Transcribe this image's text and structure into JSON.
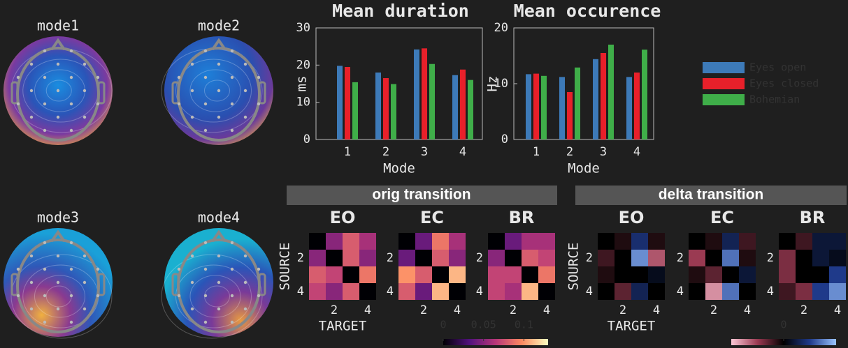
{
  "topomaps": [
    {
      "title": "mode1"
    },
    {
      "title": "mode2"
    },
    {
      "title": "mode3"
    },
    {
      "title": "mode4"
    }
  ],
  "chart_data": [
    {
      "type": "bar",
      "title": "Mean duration",
      "ylabel": "ms",
      "xlabel": "Mode",
      "categories": [
        "1",
        "2",
        "3",
        "4"
      ],
      "ylim": [
        0,
        30
      ],
      "yticks": [
        0,
        10,
        20,
        30
      ],
      "series": [
        {
          "name": "Eyes open",
          "color": "#3d7ab8",
          "values": [
            19.8,
            18,
            24.2,
            17.3
          ]
        },
        {
          "name": "Eyes closed",
          "color": "#e8202a",
          "values": [
            19.5,
            16.5,
            24.5,
            18.8
          ]
        },
        {
          "name": "Bohemian",
          "color": "#3fae49",
          "values": [
            15.4,
            14.9,
            20.3,
            16
          ]
        }
      ]
    },
    {
      "type": "bar",
      "title": "Mean occurence",
      "ylabel": "Hz",
      "xlabel": "Mode",
      "categories": [
        "1",
        "2",
        "3",
        "4"
      ],
      "ylim": [
        0,
        20
      ],
      "yticks": [
        0,
        10,
        20
      ],
      "series": [
        {
          "color": "#3d7ab8",
          "values": [
            11.7,
            11.2,
            14.4,
            11.2
          ]
        },
        {
          "color": "#e8202a",
          "values": [
            11.8,
            8.5,
            15.5,
            12
          ]
        },
        {
          "color": "#3fae49",
          "values": [
            11.4,
            12.9,
            17,
            16.1
          ]
        }
      ]
    },
    {
      "type": "heatmap",
      "title": "orig transition",
      "ylabel": "SOURCE",
      "xlabel": "TARGET",
      "xticks": [
        2,
        4
      ],
      "yticks": [
        2,
        4
      ],
      "clim": [
        0,
        0.13
      ],
      "cticks": [
        0,
        0.05,
        0.1
      ],
      "colormap": "magma",
      "panels": [
        {
          "title": "EO",
          "values": [
            [
              0,
              0.05,
              0.08,
              0.06
            ],
            [
              0.05,
              0,
              0.08,
              0.05
            ],
            [
              0.08,
              0.07,
              0,
              0.09
            ],
            [
              0.07,
              0.05,
              0.08,
              0
            ]
          ]
        },
        {
          "title": "EC",
          "values": [
            [
              0,
              0.04,
              0.09,
              0.06
            ],
            [
              0.04,
              0,
              0.08,
              0.05
            ],
            [
              0.1,
              0.08,
              0,
              0.11
            ],
            [
              0.08,
              0.04,
              0.11,
              0
            ]
          ]
        },
        {
          "title": "BR",
          "values": [
            [
              0,
              0.04,
              0.06,
              0.06
            ],
            [
              0.05,
              0,
              0.08,
              0.07
            ],
            [
              0.07,
              0.07,
              0,
              0.09
            ],
            [
              0.07,
              0.06,
              0.11,
              0
            ]
          ]
        }
      ]
    },
    {
      "type": "heatmap",
      "title": "delta transition",
      "ylabel": "SOURCE",
      "xlabel": "TARGET",
      "xticks": [
        2,
        4
      ],
      "yticks": [
        2,
        4
      ],
      "clim": [
        -0.05,
        0.05
      ],
      "cticks": [
        0
      ],
      "colormap": "pink-blue",
      "panels": [
        {
          "title": "EO",
          "values": [
            [
              0,
              -0.005,
              0.02,
              -0.005
            ],
            [
              -0.01,
              0,
              0.04,
              -0.03
            ],
            [
              -0.005,
              0,
              0,
              0.005
            ],
            [
              0,
              -0.015,
              0.015,
              0
            ]
          ]
        },
        {
          "title": "EC",
          "values": [
            [
              0,
              -0.005,
              0.015,
              -0.01
            ],
            [
              -0.025,
              0,
              0.035,
              -0.005
            ],
            [
              -0.005,
              -0.015,
              0,
              0.01
            ],
            [
              0,
              -0.04,
              0.035,
              0
            ]
          ]
        },
        {
          "title": "BR",
          "values": [
            [
              0,
              -0.01,
              0.01,
              0.01
            ],
            [
              -0.02,
              0,
              0.01,
              0.005
            ],
            [
              -0.02,
              0,
              0,
              0.025
            ],
            [
              -0.01,
              -0.02,
              0.025,
              0.04
            ]
          ]
        }
      ]
    }
  ]
}
